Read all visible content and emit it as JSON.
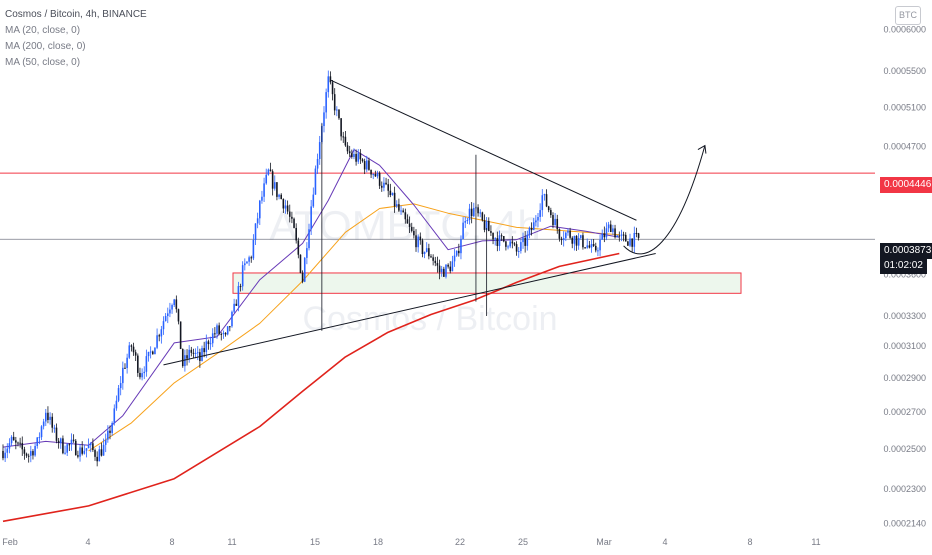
{
  "legend": {
    "title": "Cosmos / Bitcoin, 4h, BINANCE",
    "ma20": "MA (20, close, 0)",
    "ma200": "MA (200, close, 0)",
    "ma50": "MA (50, close, 0)"
  },
  "currency_badge": "BTC",
  "watermark": {
    "ticker": "ATOMBTC, 4h",
    "name": "Cosmos / Bitcoin"
  },
  "price_tags": {
    "resistance": "0.0004446",
    "current": "0.0003873",
    "countdown": "01:02:02"
  },
  "colors": {
    "up": "#2962ff",
    "down": "#131722",
    "ma20": "#673ab7",
    "ma50": "#f7a21b",
    "ma200": "#e0231c",
    "resistance": "#f23645",
    "trendline": "#131722"
  },
  "chart_data": {
    "type": "candlestick",
    "title": "Cosmos / Bitcoin, 4h, BINANCE",
    "xlabel": "",
    "ylabel": "",
    "ylim": [
      0.000212,
      0.000625
    ],
    "y_scale": "log",
    "y_ticks": [
      "0.0006000",
      "0.0005500",
      "0.0005100",
      "0.0004700",
      "0.0004300",
      "0.0003600",
      "0.0003300",
      "0.0003100",
      "0.0002900",
      "0.0002700",
      "0.0002500",
      "0.0002300",
      "0.0002140"
    ],
    "x_ticks": [
      "Feb",
      "4",
      "8",
      "11",
      "15",
      "18",
      "22",
      "25",
      "Mar",
      "4",
      "8",
      "11"
    ],
    "grid": false,
    "legend_position": "top-left",
    "series": [
      {
        "name": "MA (20, close, 0)",
        "color": "#673ab7"
      },
      {
        "name": "MA (200, close, 0)",
        "color": "#e0231c"
      },
      {
        "name": "MA (50, close, 0)",
        "color": "#f7a21b"
      }
    ],
    "close_path": [
      [
        0.0,
        0.000249
      ],
      [
        4.0,
        0.000254
      ],
      [
        8.0,
        0.00025
      ],
      [
        12.0,
        0.000247
      ],
      [
        16.0,
        0.000253
      ],
      [
        20.0,
        0.000271
      ],
      [
        24.0,
        0.000258
      ],
      [
        28.0,
        0.000251
      ],
      [
        32.0,
        0.000252
      ],
      [
        36.0,
        0.000249
      ],
      [
        40.0,
        0.000251
      ],
      [
        44.0,
        0.000247
      ],
      [
        48.0,
        0.000252
      ],
      [
        52.0,
        0.000269
      ],
      [
        56.0,
        0.000295
      ],
      [
        60.0,
        0.00031
      ],
      [
        64.0,
        0.000293
      ],
      [
        68.0,
        0.000302
      ],
      [
        72.0,
        0.000316
      ],
      [
        76.0,
        0.000331
      ],
      [
        80.0,
        0.000345
      ],
      [
        84.0,
        0.000298
      ],
      [
        88.0,
        0.000307
      ],
      [
        92.0,
        0.000301
      ],
      [
        96.0,
        0.000314
      ],
      [
        100.0,
        0.00032
      ],
      [
        104.0,
        0.000314
      ],
      [
        108.0,
        0.000334
      ],
      [
        112.0,
        0.000362
      ],
      [
        116.0,
        0.000375
      ],
      [
        120.0,
        0.000416
      ],
      [
        124.0,
        0.000445
      ],
      [
        128.0,
        0.000427
      ],
      [
        132.0,
        0.000416
      ],
      [
        136.0,
        0.000393
      ],
      [
        140.0,
        0.000356
      ],
      [
        144.0,
        0.000416
      ],
      [
        148.0,
        0.000478
      ],
      [
        152.0,
        0.000539
      ],
      [
        156.0,
        0.000503
      ],
      [
        160.0,
        0.000466
      ],
      [
        164.0,
        0.00046
      ],
      [
        168.0,
        0.000455
      ],
      [
        172.0,
        0.000448
      ],
      [
        176.0,
        0.000438
      ],
      [
        180.0,
        0.000427
      ],
      [
        184.0,
        0.000414
      ],
      [
        188.0,
        0.000401
      ],
      [
        192.0,
        0.000389
      ],
      [
        196.0,
        0.000379
      ],
      [
        200.0,
        0.000375
      ],
      [
        204.0,
        0.000362
      ],
      [
        208.0,
        0.000364
      ],
      [
        212.0,
        0.000373
      ],
      [
        216.0,
        0.000407
      ],
      [
        220.0,
        0.000412
      ],
      [
        224.0,
        0.000401
      ],
      [
        228.0,
        0.000392
      ],
      [
        232.0,
        0.000386
      ],
      [
        236.0,
        0.000386
      ],
      [
        240.0,
        0.000377
      ],
      [
        244.0,
        0.000385
      ],
      [
        248.0,
        0.000399
      ],
      [
        252.0,
        0.000424
      ],
      [
        256.0,
        0.000409
      ],
      [
        260.0,
        0.000392
      ],
      [
        264.0,
        0.000392
      ],
      [
        268.0,
        0.000387
      ],
      [
        272.0,
        0.000384
      ],
      [
        276.0,
        0.000377
      ],
      [
        280.0,
        0.000388
      ],
      [
        284.0,
        0.000399
      ],
      [
        288.0,
        0.000387
      ]
    ],
    "moving_averages": {
      "ma20": [
        [
          0.0,
          0.000251
        ],
        [
          20.0,
          0.000254
        ],
        [
          40.0,
          0.000252
        ],
        [
          56.0,
          0.000268
        ],
        [
          80.0,
          0.000312
        ],
        [
          100.0,
          0.000316
        ],
        [
          120.0,
          0.000356
        ],
        [
          140.0,
          0.000384
        ],
        [
          152.0,
          0.00042
        ],
        [
          164.0,
          0.000467
        ],
        [
          176.0,
          0.000452
        ],
        [
          192.0,
          0.000416
        ],
        [
          208.0,
          0.000379
        ],
        [
          224.0,
          0.000386
        ],
        [
          240.0,
          0.000387
        ],
        [
          256.0,
          0.000398
        ],
        [
          272.0,
          0.000394
        ],
        [
          288.0,
          0.000389
        ]
      ],
      "ma50": [
        [
          40.0,
          0.000249
        ],
        [
          60.0,
          0.000264
        ],
        [
          80.0,
          0.000287
        ],
        [
          100.0,
          0.000305
        ],
        [
          120.0,
          0.000325
        ],
        [
          140.0,
          0.000355
        ],
        [
          160.0,
          0.000393
        ],
        [
          176.0,
          0.000413
        ],
        [
          192.0,
          0.000417
        ],
        [
          208.0,
          0.000409
        ],
        [
          224.0,
          0.000403
        ],
        [
          240.0,
          0.000397
        ],
        [
          256.0,
          0.000395
        ],
        [
          272.0,
          0.000393
        ],
        [
          288.0,
          0.000391
        ]
      ],
      "ma200": [
        [
          0.0,
          0.000215
        ],
        [
          40.0,
          0.000222
        ],
        [
          80.0,
          0.000235
        ],
        [
          120.0,
          0.000262
        ],
        [
          140.0,
          0.000282
        ],
        [
          160.0,
          0.000303
        ],
        [
          180.0,
          0.000319
        ],
        [
          200.0,
          0.000331
        ],
        [
          220.0,
          0.000341
        ],
        [
          240.0,
          0.000354
        ],
        [
          260.0,
          0.000366
        ],
        [
          288.0,
          0.000376
        ]
      ]
    },
    "horizontal_levels": [
      0.0004446,
      0.0003873
    ],
    "annotations": {
      "resistance": 0.0004446,
      "current_price": 0.0003873,
      "support_zone": [
        0.000346,
        0.000361
      ],
      "upper_trendline": [
        [
          153,
          0.00054
        ],
        [
          296,
          0.000403
        ]
      ],
      "lower_trendline": [
        [
          75,
          0.000298
        ],
        [
          305,
          0.000376
        ]
      ],
      "projection_arrow": [
        [
          290,
          0.000382
        ],
        [
          300,
          0.00038
        ],
        [
          315,
          0.000415
        ],
        [
          328,
          0.000471
        ]
      ]
    }
  }
}
